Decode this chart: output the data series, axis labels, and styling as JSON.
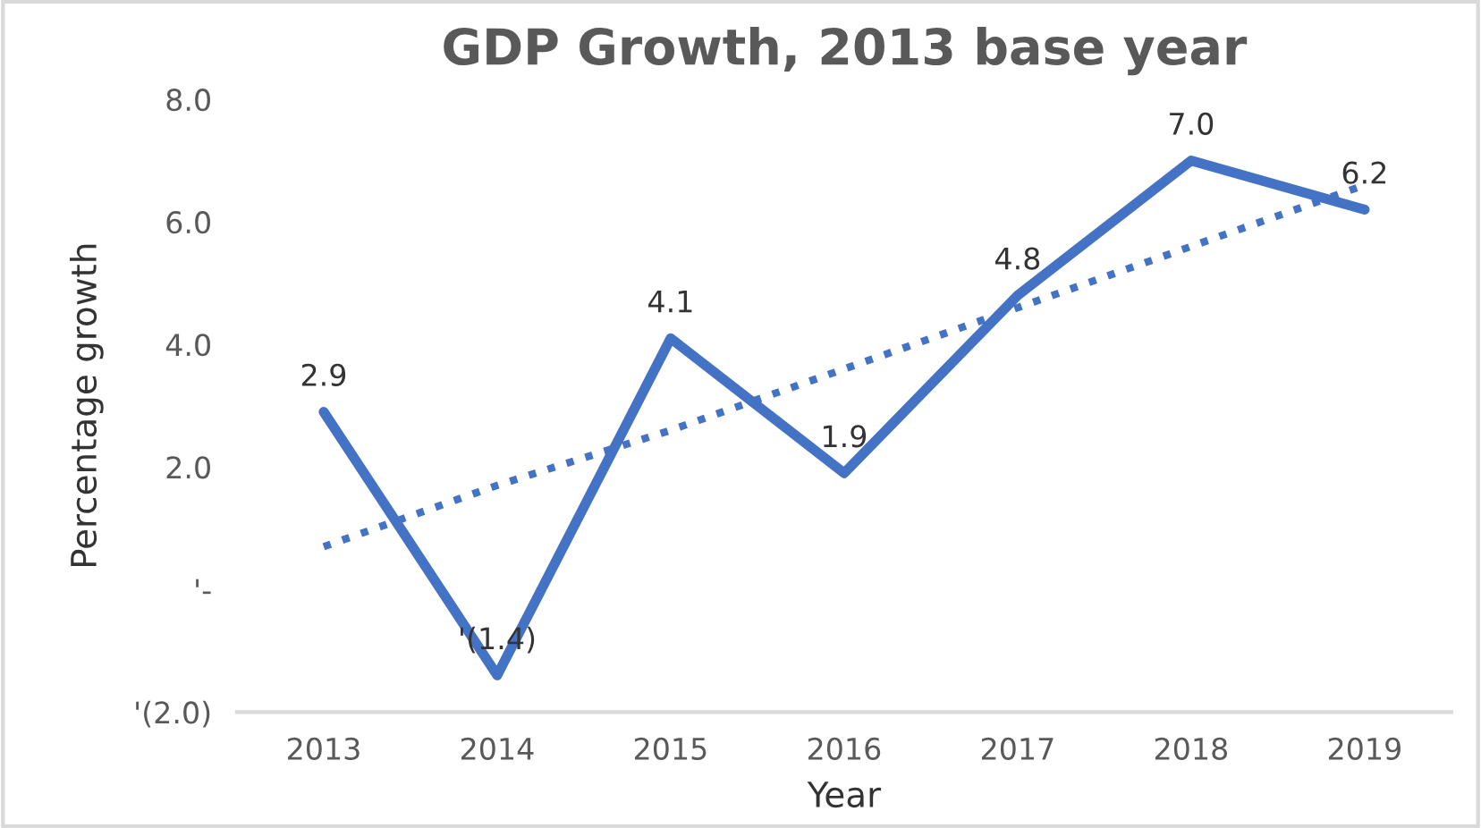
{
  "chart_data": {
    "type": "line",
    "title": "GDP Growth, 2013 base year",
    "xlabel": "Year",
    "ylabel": "Percentage growth",
    "categories": [
      "2013",
      "2014",
      "2015",
      "2016",
      "2017",
      "2018",
      "2019"
    ],
    "series": [
      {
        "color": "#4472c4",
        "values": [
          2.9,
          -1.4,
          4.1,
          1.9,
          4.8,
          7.0,
          6.2
        ],
        "value_labels": [
          "2.9",
          "'(1.4)",
          "4.1",
          "1.9",
          "4.8",
          "7.0",
          "6.2"
        ],
        "line_style": "solid"
      },
      {
        "type": "line",
        "color": "#4472c4",
        "values": [
          0.7,
          1.7,
          2.6,
          3.6,
          4.6,
          5.6,
          6.6
        ],
        "line_style": "dotted"
      }
    ],
    "ylim": [
      -2,
      8
    ],
    "yticks": [
      {
        "value": -2,
        "label": "'(2.0)"
      },
      {
        "value": 0,
        "label": "'-"
      },
      {
        "value": 2,
        "label": "2.0"
      },
      {
        "value": 4,
        "label": "4.0"
      },
      {
        "value": 6,
        "label": "6.0"
      },
      {
        "value": 8,
        "label": "8.0"
      }
    ],
    "grid": false,
    "legend": false,
    "marker": "none"
  }
}
